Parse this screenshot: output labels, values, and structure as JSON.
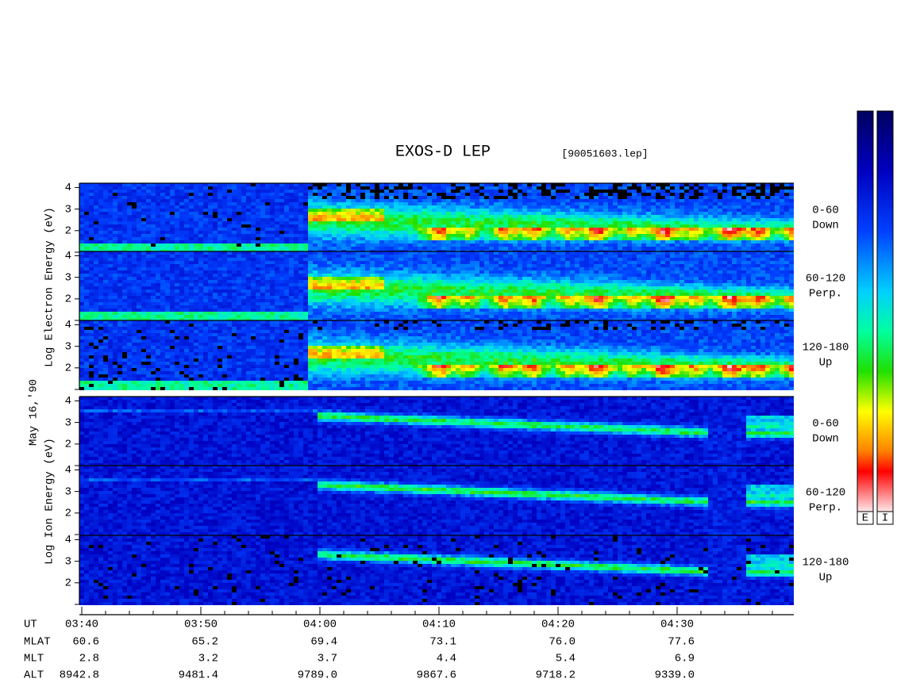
{
  "title": "EXOS-D LEP",
  "file": "[90051603.lep]",
  "date_label": "May 16,'90",
  "electron_axis_label": "Log Electron Energy (eV)",
  "ion_axis_label": "Log Ion Energy (eV)",
  "yticks": [
    2,
    3,
    4
  ],
  "panels": [
    {
      "species": "electron",
      "label_top": "0-60",
      "label_bottom": "Down"
    },
    {
      "species": "electron",
      "label_top": "60-120",
      "label_bottom": "Perp."
    },
    {
      "species": "electron",
      "label_top": "120-180",
      "label_bottom": "Up"
    },
    {
      "species": "ion",
      "label_top": "0-60",
      "label_bottom": "Down"
    },
    {
      "species": "ion",
      "label_top": "60-120",
      "label_bottom": "Perp."
    },
    {
      "species": "ion",
      "label_top": "120-180",
      "label_bottom": "Up"
    }
  ],
  "orbit_table": {
    "row_labels": [
      "UT",
      "MLAT",
      "MLT",
      "ALT"
    ],
    "columns": [
      [
        "03:40",
        "60.6",
        "2.8",
        "8942.8"
      ],
      [
        "03:50",
        "65.2",
        "3.2",
        "9481.4"
      ],
      [
        "04:00",
        "69.4",
        "3.7",
        "9789.0"
      ],
      [
        "04:10",
        "73.1",
        "4.4",
        "9867.6"
      ],
      [
        "04:20",
        "76.0",
        "5.4",
        "9718.2"
      ],
      [
        "04:30",
        "77.6",
        "6.9",
        "9339.0"
      ]
    ]
  },
  "colorbar_labels": [
    "E",
    "I"
  ]
}
